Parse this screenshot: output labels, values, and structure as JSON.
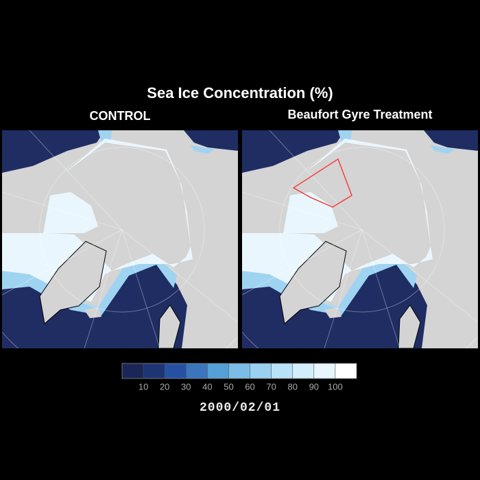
{
  "title": "Sea Ice Concentration (%)",
  "panels": [
    {
      "title": "CONTROL"
    },
    {
      "title": "Beaufort Gyre Treatment"
    }
  ],
  "colorbar": {
    "range": [
      0,
      110
    ],
    "colors": [
      "#1b2658",
      "#1e3574",
      "#2651a3",
      "#3a75bd",
      "#55a0d7",
      "#7bbde7",
      "#99d1f1",
      "#b8e2f7",
      "#d3eefb",
      "#e8f5fd",
      "#ffffff"
    ],
    "ticks": [
      10,
      20,
      30,
      40,
      50,
      60,
      70,
      80,
      90,
      100
    ]
  },
  "date": "2000/02/01"
}
